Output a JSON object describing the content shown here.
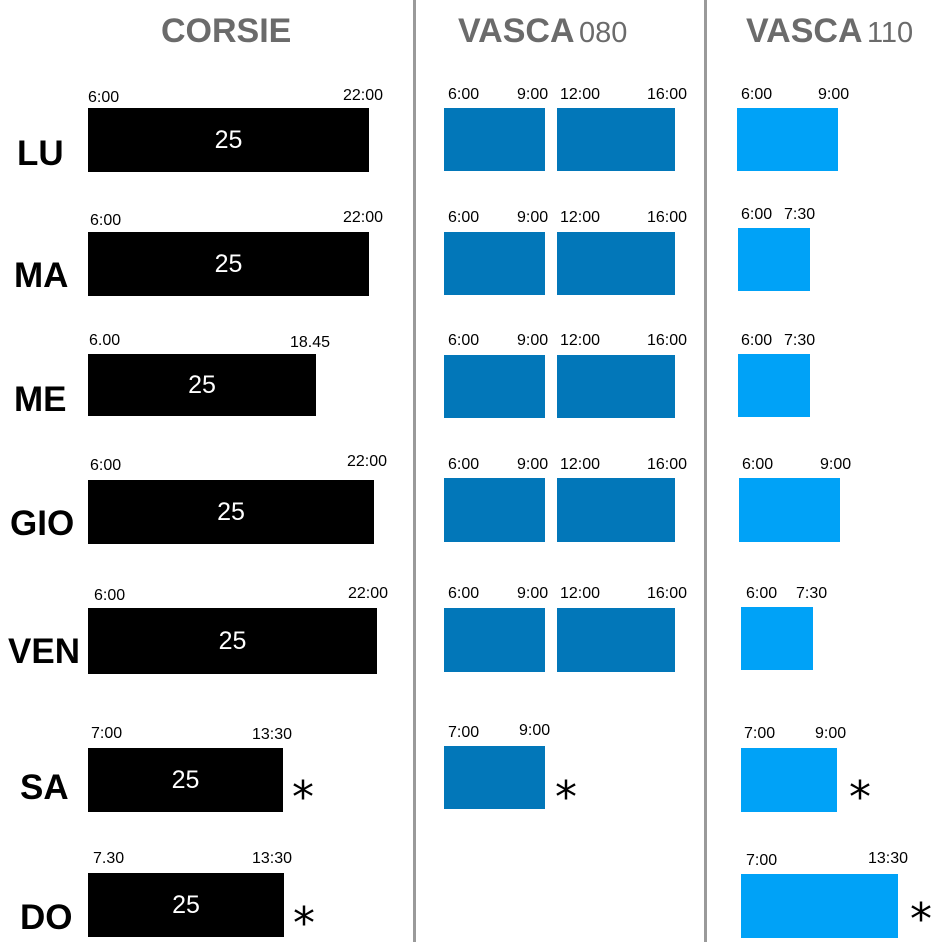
{
  "headers": {
    "corsie": "CORSIE",
    "vasca080_main": "VASCA",
    "vasca080_sub": "080",
    "vasca110_main": "VASCA",
    "vasca110_sub": "110"
  },
  "colors": {
    "corsie_bar": "#000000",
    "vasca080_bar": "#0277b9",
    "vasca110_bar": "#00a2f7",
    "header_text": "#6b6b6b",
    "divider": "#9a9a9a"
  },
  "days": [
    {
      "label": "LU",
      "corsie": {
        "start": "6:00",
        "end": "22:00",
        "lanes": "25"
      },
      "vasca080": {
        "blocks": [
          {
            "start": "6:00",
            "end": "9:00"
          },
          {
            "start": "12:00",
            "end": "16:00"
          }
        ]
      },
      "vasca110": {
        "blocks": [
          {
            "start": "6:00",
            "end": "9:00"
          }
        ]
      }
    },
    {
      "label": "MA",
      "corsie": {
        "start": "6:00",
        "end": "22:00",
        "lanes": "25"
      },
      "vasca080": {
        "blocks": [
          {
            "start": "6:00",
            "end": "9:00"
          },
          {
            "start": "12:00",
            "end": "16:00"
          }
        ]
      },
      "vasca110": {
        "blocks": [
          {
            "start": "6:00",
            "end": "7:30"
          }
        ]
      }
    },
    {
      "label": "ME",
      "corsie": {
        "start": "6.00",
        "end": "18.45",
        "lanes": "25"
      },
      "vasca080": {
        "blocks": [
          {
            "start": "6:00",
            "end": "9:00"
          },
          {
            "start": "12:00",
            "end": "16:00"
          }
        ]
      },
      "vasca110": {
        "blocks": [
          {
            "start": "6:00",
            "end": "7:30"
          }
        ]
      }
    },
    {
      "label": "GIO",
      "corsie": {
        "start": "6:00",
        "end": "22:00",
        "lanes": "25"
      },
      "vasca080": {
        "blocks": [
          {
            "start": "6:00",
            "end": "9:00"
          },
          {
            "start": "12:00",
            "end": "16:00"
          }
        ]
      },
      "vasca110": {
        "blocks": [
          {
            "start": "6:00",
            "end": "9:00"
          }
        ]
      }
    },
    {
      "label": "VEN",
      "corsie": {
        "start": "6:00",
        "end": "22:00",
        "lanes": "25"
      },
      "vasca080": {
        "blocks": [
          {
            "start": "6:00",
            "end": "9:00"
          },
          {
            "start": "12:00",
            "end": "16:00"
          }
        ]
      },
      "vasca110": {
        "blocks": [
          {
            "start": "6:00",
            "end": "7:30"
          }
        ]
      }
    },
    {
      "label": "SA",
      "corsie": {
        "start": "7:00",
        "end": "13:30",
        "lanes": "25",
        "note": "*"
      },
      "vasca080": {
        "blocks": [
          {
            "start": "7:00",
            "end": "9:00"
          }
        ],
        "note": "*"
      },
      "vasca110": {
        "blocks": [
          {
            "start": "7:00",
            "end": "9:00"
          }
        ],
        "note": "*"
      }
    },
    {
      "label": "DO",
      "corsie": {
        "start": "7.30",
        "end": "13:30",
        "lanes": "25",
        "note": "*"
      },
      "vasca080": {
        "blocks": []
      },
      "vasca110": {
        "blocks": [
          {
            "start": "7:00",
            "end": "13:30"
          }
        ],
        "note": "*"
      }
    }
  ]
}
